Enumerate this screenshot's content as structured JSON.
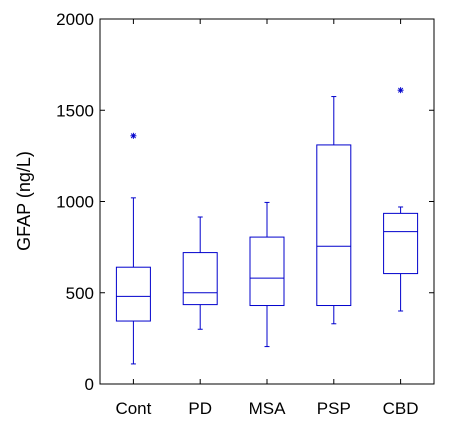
{
  "chart_data": {
    "type": "box",
    "ylabel": "GFAP (ng/L)",
    "ylim": [
      0,
      2000
    ],
    "yticks": [
      0,
      500,
      1000,
      1500,
      2000
    ],
    "grid": false,
    "categories": [
      "Cont",
      "PD",
      "MSA",
      "PSP",
      "CBD"
    ],
    "boxes": [
      {
        "category": "Cont",
        "min": 110,
        "q1": 345,
        "median": 480,
        "q3": 640,
        "max": 1020,
        "outliers": [
          1360
        ]
      },
      {
        "category": "PD",
        "min": 300,
        "q1": 435,
        "median": 500,
        "q3": 720,
        "max": 915,
        "outliers": []
      },
      {
        "category": "MSA",
        "min": 205,
        "q1": 430,
        "median": 580,
        "q3": 805,
        "max": 995,
        "outliers": []
      },
      {
        "category": "PSP",
        "min": 330,
        "q1": 430,
        "median": 755,
        "q3": 1310,
        "max": 1575,
        "outliers": []
      },
      {
        "category": "CBD",
        "min": 400,
        "q1": 605,
        "median": 835,
        "q3": 935,
        "max": 970,
        "outliers": [
          1610
        ]
      }
    ],
    "color": "#0000cc",
    "axis_color": "#000000"
  }
}
